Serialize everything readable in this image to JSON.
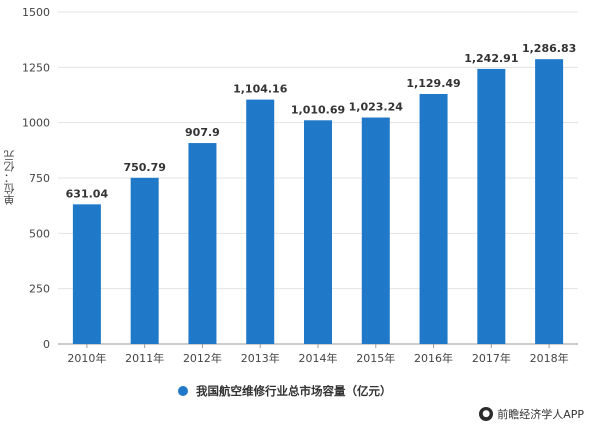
{
  "chart_data": {
    "type": "bar",
    "categories": [
      "2010年",
      "2011年",
      "2012年",
      "2013年",
      "2014年",
      "2015年",
      "2016年",
      "2017年",
      "2018年"
    ],
    "values": [
      631.04,
      750.79,
      907.9,
      1104.16,
      1010.69,
      1023.24,
      1129.49,
      1242.91,
      1286.83
    ],
    "data_labels": [
      "631.04",
      "750.79",
      "907.9",
      "1,104.16",
      "1,010.69",
      "1,023.24",
      "1,129.49",
      "1,242.91",
      "1,286.83"
    ],
    "ylim": [
      0,
      1500
    ],
    "yticks": [
      0,
      250,
      500,
      750,
      1000,
      1250,
      1500
    ],
    "ylabel": "单位：亿元",
    "series_name": "我国航空维修行业总市场容量（亿元）",
    "grid": true,
    "legend_position": "bottom",
    "colors": {
      "bar": "#1f78c8",
      "grid": "#e3e3e3",
      "axis": "#999999"
    }
  },
  "credit": "前瞻经济学人APP"
}
